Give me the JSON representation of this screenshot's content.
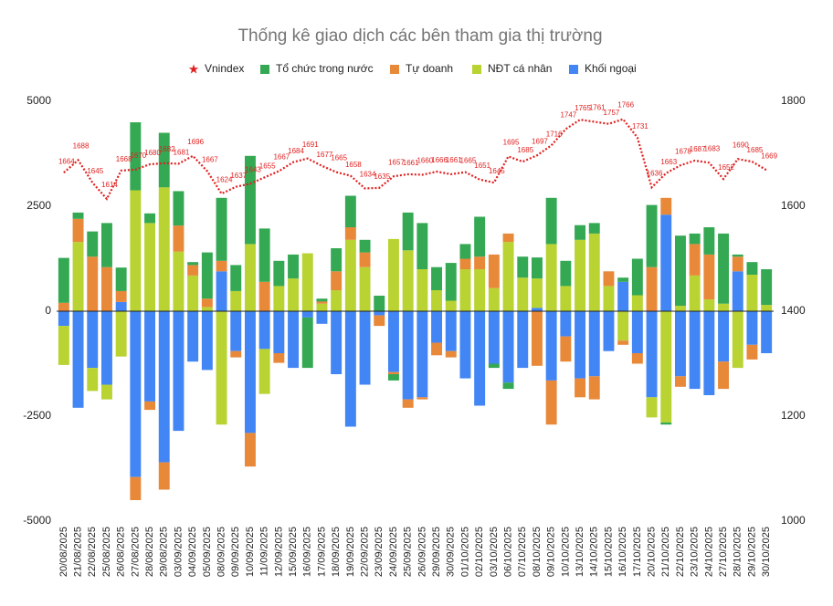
{
  "chart_data": {
    "type": "bar",
    "stacked": true,
    "title": "Thống kê giao dịch các bên tham gia thị trường",
    "categories": [
      "20/08/2025",
      "21/08/2025",
      "22/08/2025",
      "25/08/2025",
      "26/08/2025",
      "27/08/2025",
      "28/08/2025",
      "29/08/2025",
      "03/09/2025",
      "04/09/2025",
      "05/09/2025",
      "08/09/2025",
      "09/09/2025",
      "10/09/2025",
      "11/09/2025",
      "12/09/2025",
      "15/09/2025",
      "16/09/2025",
      "17/09/2025",
      "18/09/2025",
      "19/09/2025",
      "22/09/2025",
      "23/09/2025",
      "24/09/2025",
      "25/09/2025",
      "26/09/2025",
      "29/09/2025",
      "30/09/2025",
      "01/10/2025",
      "02/10/2025",
      "03/10/2025",
      "06/10/2025",
      "07/10/2025",
      "08/10/2025",
      "09/10/2025",
      "10/10/2025",
      "13/10/2025",
      "14/10/2025",
      "15/10/2025",
      "16/10/2025",
      "17/10/2025",
      "20/10/2025",
      "21/10/2025",
      "22/10/2025",
      "23/10/2025",
      "24/10/2025",
      "27/10/2025",
      "28/10/2025",
      "29/10/2025",
      "30/10/2025"
    ],
    "series": [
      {
        "name": "Vnindex",
        "type": "line",
        "axis": "y2",
        "color": "#e02020",
        "values": [
          1664,
          1688,
          1645,
          1614,
          1668,
          1670,
          1680,
          1682,
          1681,
          1696,
          1667,
          1624,
          1637,
          1643,
          1655,
          1667,
          1684,
          1691,
          1677,
          1665,
          1658,
          1634,
          1635,
          1657,
          1661,
          1660,
          1666,
          1661,
          1665,
          1651,
          1645,
          1695,
          1685,
          1697,
          1716,
          1747,
          1765,
          1761,
          1757,
          1766,
          1731,
          1636,
          1663,
          1678,
          1687,
          1683,
          1652,
          1690,
          1685,
          1669
        ]
      },
      {
        "name": "Tổ chức trong nước",
        "color": "#34a853",
        "values": [
          1070,
          150,
          600,
          1050,
          560,
          1620,
          230,
          1300,
          820,
          70,
          1100,
          1500,
          620,
          2100,
          1270,
          600,
          570,
          -1200,
          70,
          550,
          750,
          300,
          370,
          -150,
          900,
          1100,
          550,
          900,
          350,
          950,
          -100,
          -150,
          500,
          500,
          1100,
          600,
          350,
          250,
          0,
          100,
          870,
          1480,
          -50,
          1670,
          250,
          650,
          1670,
          50,
          300,
          850
        ]
      },
      {
        "name": "Tự doanh",
        "color": "#e8893a",
        "values": [
          200,
          550,
          1300,
          1050,
          260,
          -550,
          -200,
          -650,
          620,
          250,
          200,
          250,
          -150,
          -800,
          700,
          -230,
          0,
          0,
          50,
          450,
          300,
          350,
          -250,
          -50,
          -200,
          -50,
          -300,
          -150,
          250,
          300,
          800,
          200,
          0,
          -1300,
          -1050,
          -600,
          -450,
          -550,
          350,
          -100,
          -250,
          1050,
          400,
          -250,
          750,
          1070,
          -650,
          350,
          -350,
          0
        ]
      },
      {
        "name": "NĐT cá nhân",
        "color": "#b8d332",
        "values": [
          -930,
          1650,
          -550,
          -350,
          -1080,
          2880,
          2100,
          2950,
          1420,
          850,
          100,
          -2700,
          480,
          1600,
          -1070,
          600,
          780,
          1380,
          180,
          500,
          1700,
          1050,
          0,
          1720,
          1450,
          1000,
          500,
          250,
          1000,
          1000,
          550,
          1650,
          800,
          700,
          1600,
          600,
          1700,
          1850,
          600,
          -700,
          380,
          -480,
          -2650,
          130,
          850,
          280,
          180,
          -1350,
          870,
          150
        ]
      },
      {
        "name": "Khối ngoại",
        "color": "#4285f4",
        "values": [
          -350,
          -2300,
          -1350,
          -1750,
          220,
          -3950,
          -2150,
          -3600,
          -2850,
          -1200,
          -1400,
          950,
          -950,
          -2900,
          -900,
          -1000,
          -1350,
          -150,
          -300,
          -1500,
          -2750,
          -1750,
          -100,
          -1450,
          -2100,
          -2050,
          -750,
          -950,
          -1600,
          -2250,
          -1250,
          -1700,
          -1350,
          80,
          -1650,
          -600,
          -1600,
          -1550,
          -950,
          700,
          -1000,
          -2050,
          2300,
          -1550,
          -1850,
          -2000,
          -1200,
          950,
          -800,
          -1000
        ]
      }
    ],
    "ylim": [
      -5000,
      5000
    ],
    "yticks": [
      -5000,
      -2500,
      0,
      2500,
      5000
    ],
    "y2lim": [
      1000,
      1800
    ],
    "y2ticks": [
      1000,
      1200,
      1400,
      1600,
      1800
    ],
    "grid": false,
    "legend": "top"
  }
}
